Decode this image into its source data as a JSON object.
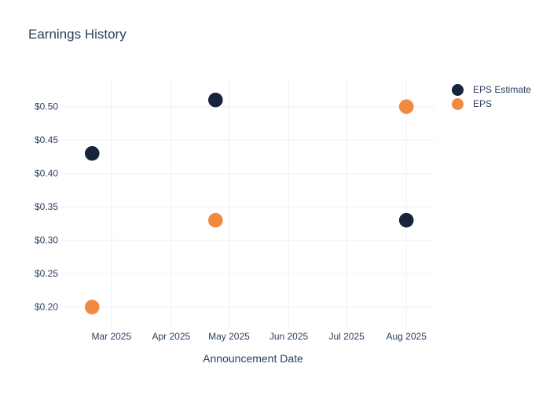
{
  "chart": {
    "title": "Earnings History",
    "x_axis_title": "Announcement Date"
  },
  "chart_data": {
    "type": "scatter",
    "title": "Earnings History",
    "xlabel": "Announcement Date",
    "ylabel": "",
    "grid": true,
    "legend_position": "right",
    "background_color": "#ffffff",
    "text_color": "#2a3f5f",
    "grid_color": "#edf0f8",
    "x_domain": [
      "2025-02-03",
      "2025-08-16"
    ],
    "y_domain": [
      0.169,
      0.542
    ],
    "x_ticks": [
      {
        "date": "2025-03-01",
        "label": "Mar 2025"
      },
      {
        "date": "2025-04-01",
        "label": "Apr 2025"
      },
      {
        "date": "2025-05-01",
        "label": "May 2025"
      },
      {
        "date": "2025-06-01",
        "label": "Jun 2025"
      },
      {
        "date": "2025-07-01",
        "label": "Jul 2025"
      },
      {
        "date": "2025-08-01",
        "label": "Aug 2025"
      }
    ],
    "y_ticks": [
      {
        "value": 0.5,
        "label": "$0.50"
      },
      {
        "value": 0.45,
        "label": "$0.45"
      },
      {
        "value": 0.4,
        "label": "$0.40"
      },
      {
        "value": 0.35,
        "label": "$0.35"
      },
      {
        "value": 0.3,
        "label": "$0.30"
      },
      {
        "value": 0.25,
        "label": "$0.25"
      },
      {
        "value": 0.2,
        "label": "$0.20"
      }
    ],
    "series": [
      {
        "name": "EPS Estimate",
        "color": "#16243e",
        "points": [
          {
            "date": "2025-02-19",
            "value": 0.43
          },
          {
            "date": "2025-04-24",
            "value": 0.51
          },
          {
            "date": "2025-08-01",
            "value": 0.33
          }
        ]
      },
      {
        "name": "EPS",
        "color": "#f08a40",
        "points": [
          {
            "date": "2025-02-19",
            "value": 0.2
          },
          {
            "date": "2025-04-24",
            "value": 0.33
          },
          {
            "date": "2025-08-01",
            "value": 0.5
          }
        ]
      }
    ]
  }
}
